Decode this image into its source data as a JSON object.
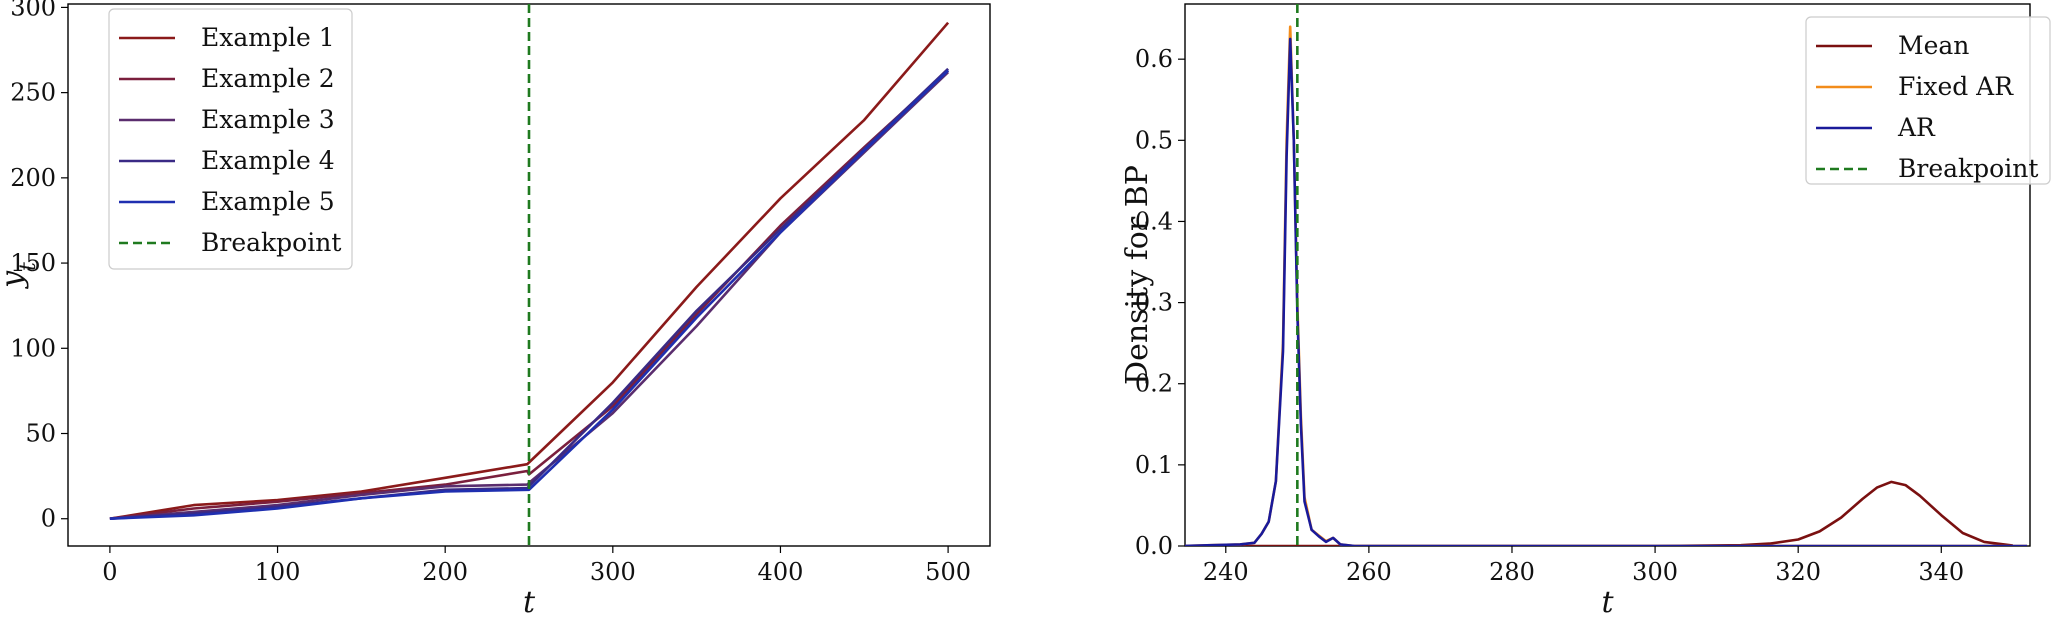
{
  "chart_data": [
    {
      "type": "line",
      "xlabel": "t",
      "ylabel": "y_t",
      "xlim": [
        -25,
        525
      ],
      "ylim": [
        -16,
        302
      ],
      "xticks": [
        0,
        100,
        200,
        300,
        400,
        500
      ],
      "yticks": [
        0,
        50,
        100,
        150,
        200,
        250,
        300
      ],
      "legend_position": "upper-left",
      "breakpoint": {
        "name": "Breakpoint",
        "x": 250,
        "color": "#1f7a1f",
        "style": "dashed"
      },
      "series": [
        {
          "name": "Example 1",
          "color": "#8b1a1a",
          "x": [
            0,
            50,
            100,
            150,
            200,
            249,
            250,
            300,
            350,
            400,
            450,
            500
          ],
          "y": [
            0,
            8,
            11,
            16,
            24,
            32,
            33,
            80,
            136,
            188,
            234,
            291
          ]
        },
        {
          "name": "Example 2",
          "color": "#7a1f3d",
          "x": [
            0,
            50,
            100,
            150,
            200,
            249,
            250,
            300,
            350,
            400,
            450,
            500
          ],
          "y": [
            0,
            6,
            10,
            15,
            20,
            28,
            26,
            66,
            120,
            172,
            218,
            263
          ]
        },
        {
          "name": "Example 3",
          "color": "#5a2d6e",
          "x": [
            0,
            50,
            100,
            150,
            200,
            249,
            250,
            300,
            350,
            400,
            450,
            500
          ],
          "y": [
            0,
            4,
            8,
            14,
            19,
            20,
            21,
            62,
            113,
            168,
            215,
            262
          ]
        },
        {
          "name": "Example 4",
          "color": "#3a2a85",
          "x": [
            0,
            50,
            100,
            150,
            200,
            249,
            250,
            300,
            350,
            400,
            450,
            500
          ],
          "y": [
            0,
            3,
            7,
            12,
            17,
            18,
            19,
            68,
            122,
            170,
            217,
            264
          ]
        },
        {
          "name": "Example 5",
          "color": "#1f2fb0",
          "x": [
            0,
            50,
            100,
            150,
            200,
            249,
            250,
            300,
            350,
            400,
            450,
            500
          ],
          "y": [
            0,
            2,
            6,
            12,
            16,
            17,
            17,
            64,
            118,
            168,
            216,
            263
          ]
        }
      ]
    },
    {
      "type": "line",
      "xlabel": "t",
      "ylabel": "Density for BP",
      "xlim": [
        234.3,
        352.4
      ],
      "ylim": [
        0,
        0.668
      ],
      "xticks": [
        240,
        260,
        280,
        300,
        320,
        340
      ],
      "yticks": [
        0.0,
        0.1,
        0.2,
        0.3,
        0.4,
        0.5,
        0.6
      ],
      "legend_position": "upper-right",
      "breakpoint": {
        "name": "Breakpoint",
        "x": 250,
        "color": "#1f7a1f",
        "style": "dashed"
      },
      "series": [
        {
          "name": "Mean",
          "color": "#7a1010",
          "x": [
            234,
            300,
            312,
            316,
            320,
            323,
            326,
            329,
            331,
            333,
            335,
            337,
            340,
            343,
            346,
            350
          ],
          "y": [
            0,
            0,
            0.001,
            0.003,
            0.008,
            0.018,
            0.035,
            0.058,
            0.072,
            0.079,
            0.075,
            0.062,
            0.038,
            0.016,
            0.005,
            0.0005
          ]
        },
        {
          "name": "Fixed AR",
          "color": "#f28c1a",
          "x": [
            234,
            238,
            242,
            244,
            245,
            246,
            247,
            248,
            248.5,
            249,
            249.5,
            250,
            250.5,
            251,
            252,
            253,
            254,
            255,
            256,
            258,
            352
          ],
          "y": [
            0,
            0.001,
            0.002,
            0.004,
            0.015,
            0.03,
            0.08,
            0.25,
            0.5,
            0.64,
            0.5,
            0.3,
            0.16,
            0.06,
            0.02,
            0.013,
            0.006,
            0.01,
            0.002,
            0,
            0
          ]
        },
        {
          "name": "AR",
          "color": "#1a1a9a",
          "x": [
            234,
            238,
            242,
            244,
            245,
            246,
            247,
            248,
            248.5,
            249,
            249.5,
            250,
            250.5,
            251,
            252,
            253,
            254,
            255,
            256,
            258,
            352
          ],
          "y": [
            0,
            0.001,
            0.002,
            0.004,
            0.015,
            0.03,
            0.08,
            0.24,
            0.48,
            0.625,
            0.5,
            0.29,
            0.15,
            0.055,
            0.02,
            0.012,
            0.005,
            0.01,
            0.002,
            0,
            0
          ]
        }
      ]
    }
  ]
}
